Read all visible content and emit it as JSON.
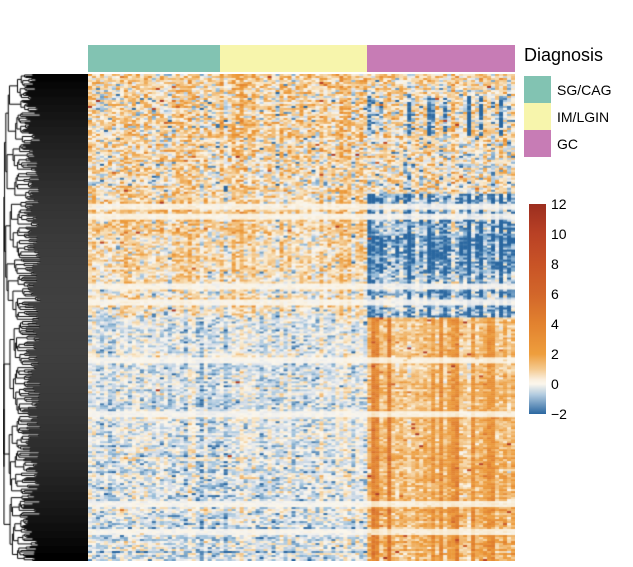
{
  "legend": {
    "title": "Diagnosis",
    "items": [
      {
        "label": "SG/CAG",
        "color": "#82c3b2"
      },
      {
        "label": "IM/LGIN",
        "color": "#f7f5ac"
      },
      {
        "label": "GC",
        "color": "#c77cb5"
      }
    ]
  },
  "colorbar": {
    "min": -2,
    "max": 12,
    "ticks": [
      {
        "label": "12",
        "value": 12
      },
      {
        "label": "10",
        "value": 10
      },
      {
        "label": "8",
        "value": 8
      },
      {
        "label": "6",
        "value": 6
      },
      {
        "label": "4",
        "value": 4
      },
      {
        "label": "2",
        "value": 2
      },
      {
        "label": "0",
        "value": 0
      },
      {
        "label": "−2",
        "value": -2
      }
    ],
    "gradient": [
      [
        12,
        "#9c2e1f"
      ],
      [
        10,
        "#b94125"
      ],
      [
        8,
        "#c85326"
      ],
      [
        6,
        "#d2662a"
      ],
      [
        4,
        "#e2822f"
      ],
      [
        2,
        "#ee9e3d"
      ],
      [
        1,
        "#f4c98e"
      ],
      [
        0.3,
        "#faeedd"
      ],
      [
        0,
        "#fbf6ec"
      ],
      [
        -0.7,
        "#b3cce0"
      ],
      [
        -2,
        "#2a67a0"
      ]
    ]
  },
  "chart_data": {
    "type": "heatmap",
    "title": "",
    "description": "Row-clustered expression heatmap (values ~ -2 to 12, blue-white-orange-red diverging scale) of samples grouped by Diagnosis: SG/CAG, IM/LGIN, GC. Upper gene cluster is elevated in SG/CAG and IM/LGIN and suppressed (blue) in GC; lower gene cluster is pale/low in SG/CAG and IM/LGIN and elevated (orange) in GC.",
    "value_scale": {
      "min": -2,
      "max": 12,
      "zero_color": "white",
      "high_color": "dark red",
      "low_color": "steel blue"
    },
    "rows": 244,
    "cols": 107,
    "row_dendrogram": {
      "side": "left",
      "leaves": 488,
      "seed": 11,
      "compression_exponent": 0.07
    },
    "column_groups": [
      {
        "label": "SG/CAG",
        "color": "#82c3b2",
        "cols": 33
      },
      {
        "label": "IM/LGIN",
        "color": "#f7f5ac",
        "cols": 37
      },
      {
        "label": "GC",
        "color": "#c77cb5",
        "cols": 37
      }
    ],
    "seed": 42,
    "palette": [
      [
        -2,
        "#2a67a0"
      ],
      [
        -1,
        "#9fc2dc"
      ],
      [
        -0.45,
        "#d8dfe8"
      ],
      [
        -0.1,
        "#f2f1ee"
      ],
      [
        0,
        "#faf6ec"
      ],
      [
        0.6,
        "#f7e0ba"
      ],
      [
        1.3,
        "#f2bf7c"
      ],
      [
        2.2,
        "#ed9c3c"
      ],
      [
        4,
        "#e07e2d"
      ],
      [
        6,
        "#d2662a"
      ],
      [
        9,
        "#b94125"
      ],
      [
        12,
        "#9c2e1f"
      ]
    ],
    "white_band_rows": [
      0.272,
      0.29,
      0.435,
      0.468,
      0.585,
      0.698,
      0.882,
      0.938
    ],
    "pattern_blocks": [
      {
        "from": 0.0,
        "to": 0.045,
        "means": [
          0.7,
          0.8,
          0.5
        ],
        "std": 0.9,
        "col_tex": true,
        "speck": [
          0.006,
          0.006,
          0.005
        ]
      },
      {
        "from": 0.045,
        "to": 0.125,
        "means": [
          0.6,
          0.7,
          0.35
        ],
        "std": 1.0,
        "col_tex": true,
        "gc_blue_streaks": 1.5,
        "speck": [
          0.006,
          0.006,
          0.005
        ]
      },
      {
        "from": 0.125,
        "to": 0.245,
        "means": [
          0.65,
          0.6,
          0.25
        ],
        "std": 0.95,
        "col_tex": true,
        "speck": [
          0.006,
          0.006,
          0.004
        ]
      },
      {
        "from": 0.245,
        "to": 0.325,
        "means": [
          1.0,
          0.85,
          -0.9
        ],
        "std": 0.85,
        "col_tex": true,
        "gc_blue_streaks": 0.9,
        "speck": [
          0.004,
          0.003,
          0.001
        ]
      },
      {
        "from": 0.325,
        "to": 0.405,
        "means": [
          0.75,
          0.65,
          -1.35
        ],
        "std": 0.75,
        "col_tex": true,
        "gc_blue_streaks": 0.9,
        "speck": [
          0.003,
          0.003,
          0.001
        ]
      },
      {
        "from": 0.405,
        "to": 0.5,
        "means": [
          0.45,
          0.35,
          -0.85
        ],
        "std": 0.75,
        "col_tex": true,
        "gc_blue_streaks": 0.8,
        "speck": [
          0.002,
          0.002,
          0.001
        ]
      },
      {
        "from": 0.5,
        "to": 0.63,
        "means": [
          -0.35,
          -0.38,
          1.1
        ],
        "std": 0.55,
        "gc_orange_streaks": true,
        "speck": [
          0.001,
          0.001,
          0.012
        ]
      },
      {
        "from": 0.63,
        "to": 0.77,
        "means": [
          -0.42,
          -0.42,
          1.25
        ],
        "std": 0.55,
        "gc_orange_streaks": true,
        "speck": [
          0.001,
          0.001,
          0.012
        ]
      },
      {
        "from": 0.77,
        "to": 1.0,
        "means": [
          -0.35,
          -0.38,
          1.5
        ],
        "std": 0.6,
        "gc_orange_streaks": true,
        "speck": [
          0.001,
          0.002,
          0.016
        ]
      }
    ]
  }
}
